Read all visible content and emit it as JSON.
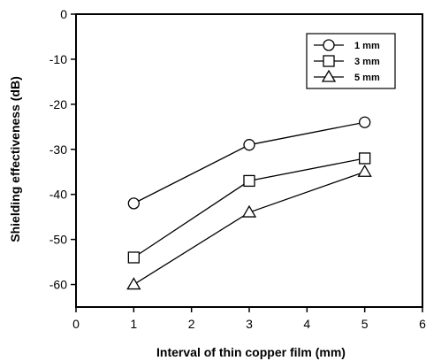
{
  "chart_data": {
    "type": "line",
    "title": "",
    "xlabel": "Interval of thin copper film (mm)",
    "ylabel": "Shielding effectiveness (dB)",
    "xlim": [
      0,
      6
    ],
    "ylim": [
      -65,
      0
    ],
    "x_ticks": [
      "0",
      "1",
      "2",
      "3",
      "4",
      "5",
      "6"
    ],
    "y_ticks": [
      "0",
      "-10",
      "-20",
      "-30",
      "-40",
      "-50",
      "-60"
    ],
    "x": [
      1,
      3,
      5
    ],
    "series": [
      {
        "name": "1 mm",
        "marker": "circle",
        "values": [
          -42,
          -29,
          -24
        ]
      },
      {
        "name": "3 mm",
        "marker": "square",
        "values": [
          -54,
          -37,
          -32
        ]
      },
      {
        "name": "5 mm",
        "marker": "triangle",
        "values": [
          -60,
          -44,
          -35
        ]
      }
    ],
    "grid": false,
    "legend": "top-right",
    "color": "#000000"
  }
}
